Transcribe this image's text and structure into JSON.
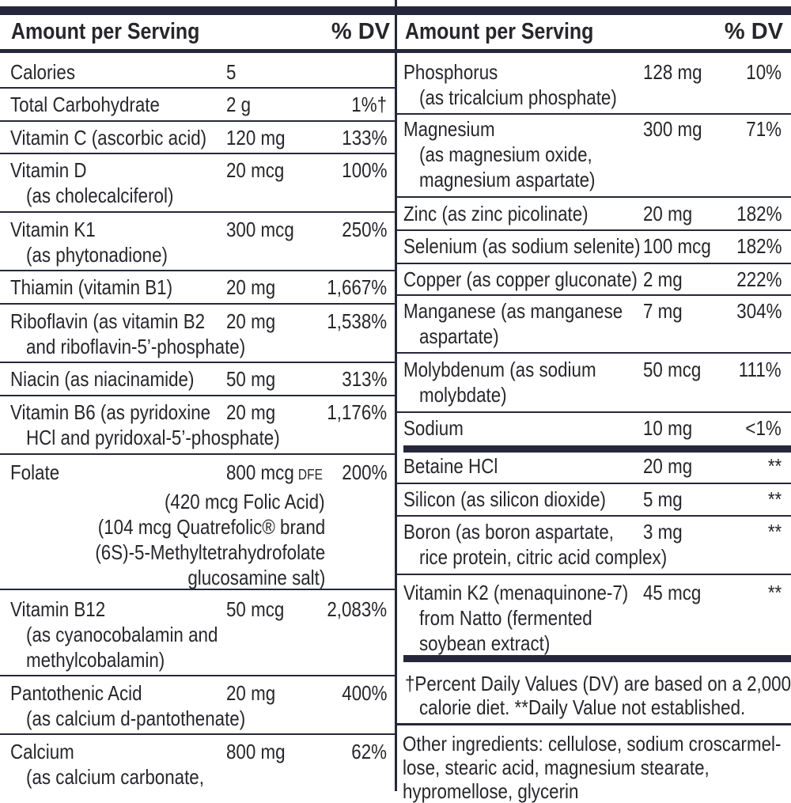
{
  "header": {
    "amount_label": "Amount per Serving",
    "dv_label": "% DV"
  },
  "left_rows": [
    {
      "lines": [
        "Calories"
      ],
      "amount": "5",
      "dv": ""
    },
    {
      "lines": [
        "Total Carbohydrate"
      ],
      "amount": "2 g",
      "dv": "1%†"
    },
    {
      "lines": [
        "Vitamin C (ascorbic acid)"
      ],
      "amount": "120 mg",
      "dv": "133%"
    },
    {
      "lines": [
        "Vitamin D",
        "(as cholecalciferol)"
      ],
      "amount": "20 mcg",
      "dv": "100%"
    },
    {
      "lines": [
        "Vitamin K1",
        "(as phytonadione)"
      ],
      "amount": "300 mcg",
      "dv": "250%"
    },
    {
      "lines": [
        "Thiamin (vitamin B1)"
      ],
      "amount": "20 mg",
      "dv": "1,667%"
    },
    {
      "lines": [
        "Riboflavin (as vitamin B2",
        "and riboflavin-5’-phosphate)"
      ],
      "amount": "20 mg",
      "dv": "1,538%"
    },
    {
      "lines": [
        "Niacin (as niacinamide)"
      ],
      "amount": "50 mg",
      "dv": "313%"
    },
    {
      "lines": [
        "Vitamin B6 (as pyridoxine",
        "HCl and pyridoxal-5’-phosphate)"
      ],
      "amount": "20 mg",
      "dv": "1,176%"
    },
    {
      "lines": [
        "Folate"
      ],
      "amount": "800 mcg",
      "amount_unit": "DFE",
      "dv": "200%",
      "sub_lines": [
        "(420 mcg Folic Acid)",
        "(104 mcg Quatrefolic® brand",
        "(6S)-5-Methyltetrahydrofolate",
        "glucosamine salt)"
      ]
    },
    {
      "lines": [
        "Vitamin B12",
        "(as cyanocobalamin and",
        "methylcobalamin)"
      ],
      "amount": "50 mcg",
      "dv": "2,083%"
    },
    {
      "lines": [
        "Pantothenic Acid",
        "(as calcium d-pantothenate)"
      ],
      "amount": "20 mg",
      "dv": "400%"
    },
    {
      "lines": [
        "Calcium",
        "(as calcium carbonate,"
      ],
      "amount": "800 mg",
      "dv": "62%"
    }
  ],
  "right_rows": [
    {
      "lines": [
        "Phosphorus",
        "(as tricalcium phosphate)"
      ],
      "amount": "128 mg",
      "dv": "10%"
    },
    {
      "lines": [
        "Magnesium",
        "(as magnesium oxide,",
        "magnesium aspartate)"
      ],
      "amount": "300 mg",
      "dv": "71%"
    },
    {
      "lines": [
        "Zinc (as zinc picolinate)"
      ],
      "amount": "20 mg",
      "dv": "182%"
    },
    {
      "lines": [
        "Selenium (as sodium selenite)"
      ],
      "amount": "100 mcg",
      "dv": "182%"
    },
    {
      "lines": [
        "Copper (as copper gluconate)"
      ],
      "amount": "2 mg",
      "dv": "222%"
    },
    {
      "lines": [
        "Manganese (as manganese",
        "aspartate)"
      ],
      "amount": "7 mg",
      "dv": "304%"
    },
    {
      "lines": [
        "Molybdenum (as sodium",
        "molybdate)"
      ],
      "amount": "50 mcg",
      "dv": "111%"
    },
    {
      "lines": [
        "Sodium"
      ],
      "amount": "10 mg",
      "dv": "<1%"
    },
    {
      "lines": [
        "Betaine HCl"
      ],
      "amount": "20 mg",
      "dv": "**"
    },
    {
      "lines": [
        "Silicon (as silicon dioxide)"
      ],
      "amount": "5 mg",
      "dv": "**"
    },
    {
      "lines": [
        "Boron (as boron aspartate,",
        "rice protein, citric acid complex)"
      ],
      "amount": "3 mg",
      "dv": "**"
    },
    {
      "lines": [
        "Vitamin K2 (menaquinone-7)",
        "from Natto (fermented",
        "soybean extract)"
      ],
      "amount": "45 mcg",
      "dv": "**"
    }
  ],
  "footnote": {
    "line1": "†Percent Daily Values (DV) are based on a 2,000",
    "line2": "calorie diet. **Daily Value not established."
  },
  "other_ingredients": {
    "line1": "Other ingredients: cellulose, sodium croscarmel-",
    "line2": "lose, stearic acid, magnesium stearate,",
    "line3": "hypromellose, glycerin"
  }
}
